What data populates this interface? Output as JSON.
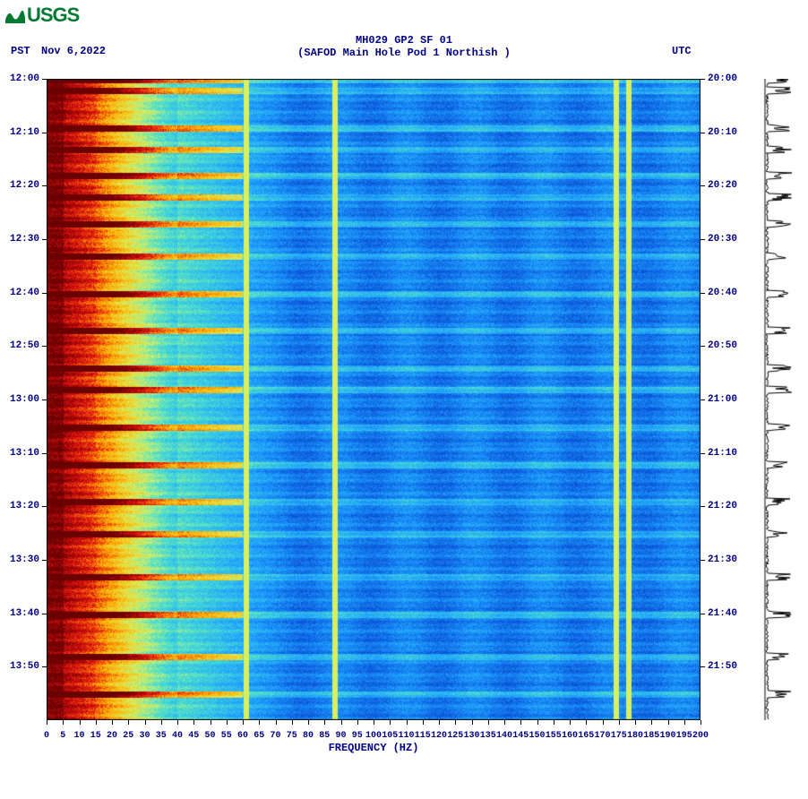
{
  "logo": {
    "text": "USGS",
    "color": "#007a33"
  },
  "header": {
    "title_line1": "MH029 GP2 SF 01",
    "title_line2": "(SAFOD Main Hole Pod 1 Northish )",
    "pst_label": "PST",
    "date": "Nov 6,2022",
    "utc_label": "UTC"
  },
  "chart": {
    "type": "spectrogram",
    "xlabel": "FREQUENCY (HZ)",
    "xlim": [
      0,
      200
    ],
    "xtick_step": 5,
    "xticks": [
      0,
      5,
      10,
      15,
      20,
      25,
      30,
      35,
      40,
      45,
      50,
      55,
      60,
      65,
      70,
      75,
      80,
      85,
      90,
      95,
      100,
      105,
      110,
      115,
      120,
      125,
      130,
      135,
      140,
      145,
      150,
      155,
      160,
      165,
      170,
      175,
      180,
      185,
      190,
      195,
      200
    ],
    "left_time_ticks": [
      "12:00",
      "12:10",
      "12:20",
      "12:30",
      "12:40",
      "12:50",
      "13:00",
      "13:10",
      "13:20",
      "13:30",
      "13:40",
      "13:50"
    ],
    "right_time_ticks": [
      "20:00",
      "20:10",
      "20:20",
      "20:30",
      "20:40",
      "20:50",
      "21:00",
      "21:10",
      "21:20",
      "21:30",
      "21:40",
      "21:50"
    ],
    "time_span_minutes": 120,
    "colormap": {
      "low": "#0a4fd6",
      "mid1": "#1ea0ff",
      "mid2": "#4be0d0",
      "mid3": "#d8f060",
      "high1": "#ffb000",
      "high2": "#e01010",
      "peak": "#6b0000"
    },
    "vertical_lines_hz": [
      61,
      88,
      174,
      178
    ],
    "vertical_line_colors": [
      "#d08000",
      "#d08000",
      "#ff8000",
      "#c00000"
    ],
    "background_blue_dominant_above_hz": 70,
    "low_freq_hot_cutoff_hz": 40,
    "burst_rows_approx_min": [
      0,
      2,
      9,
      13,
      18,
      22,
      27,
      33,
      40,
      47,
      54,
      58,
      65,
      72,
      79,
      85,
      93,
      100,
      108,
      115
    ],
    "plot_bg": "#ffffff",
    "text_color": "#000080",
    "label_fontsize": 12,
    "tick_fontsize": 11,
    "side_amplitude_trace": true
  }
}
